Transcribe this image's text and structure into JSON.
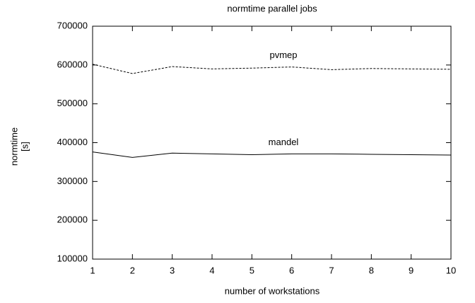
{
  "chart_data": {
    "type": "line",
    "title": "normtime parallel jobs",
    "xlabel": "number of workstations",
    "ylabel": [
      "normtime",
      "[s]"
    ],
    "x": [
      1,
      2,
      3,
      4,
      5,
      6,
      7,
      8,
      9,
      10
    ],
    "series": [
      {
        "name": "pvmep",
        "color": "#000000",
        "dashed": true,
        "values": [
          602000,
          578000,
          596000,
          590000,
          592000,
          595000,
          588000,
          591000,
          590000,
          589000
        ]
      },
      {
        "name": "mandel",
        "color": "#000000",
        "dashed": false,
        "values": [
          376000,
          362000,
          373000,
          371000,
          369000,
          371000,
          371000,
          370000,
          369000,
          368000
        ]
      }
    ],
    "xlim": [
      1,
      10
    ],
    "xticks": [
      1,
      2,
      3,
      4,
      5,
      6,
      7,
      8,
      9,
      10
    ],
    "ylim": [
      100000,
      700000
    ],
    "yticks": [
      100000,
      200000,
      300000,
      400000,
      500000,
      600000,
      700000
    ],
    "grid": false
  }
}
